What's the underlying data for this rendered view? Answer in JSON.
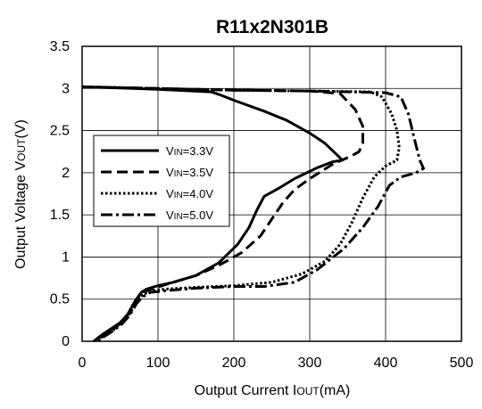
{
  "chart_data": {
    "type": "line",
    "title": "R11x2N301B",
    "xlabel": {
      "pre": "Output Current I",
      "sub": "OUT",
      "post": "(mA)"
    },
    "ylabel": {
      "pre": "Output Voltage V",
      "sub": "OUT",
      "post": "(V)"
    },
    "xlim": [
      0,
      500
    ],
    "ylim": [
      0,
      3.5
    ],
    "xticks": [
      "0",
      "100",
      "200",
      "300",
      "400",
      "500"
    ],
    "yticks": [
      "0",
      "0.5",
      "1",
      "1.5",
      "2",
      "2.5",
      "3",
      "3.5"
    ],
    "grid": true,
    "legend_position": "left-middle",
    "series": [
      {
        "name": {
          "pre": "V",
          "sub": "IN",
          "post": "=3.3V"
        },
        "style": "solid",
        "points": [
          [
            0,
            3.02
          ],
          [
            100,
            2.99
          ],
          [
            170,
            2.96
          ],
          [
            180,
            2.93
          ],
          [
            200,
            2.86
          ],
          [
            240,
            2.73
          ],
          [
            270,
            2.62
          ],
          [
            300,
            2.47
          ],
          [
            320,
            2.35
          ],
          [
            335,
            2.22
          ],
          [
            343,
            2.15
          ],
          [
            330,
            2.13
          ],
          [
            310,
            2.06
          ],
          [
            280,
            1.93
          ],
          [
            260,
            1.82
          ],
          [
            240,
            1.72
          ],
          [
            237,
            1.67
          ],
          [
            230,
            1.55
          ],
          [
            220,
            1.35
          ],
          [
            205,
            1.15
          ],
          [
            180,
            0.93
          ],
          [
            150,
            0.78
          ],
          [
            120,
            0.7
          ],
          [
            100,
            0.66
          ],
          [
            85,
            0.62
          ],
          [
            78,
            0.58
          ],
          [
            70,
            0.48
          ],
          [
            60,
            0.32
          ],
          [
            50,
            0.22
          ],
          [
            40,
            0.16
          ],
          [
            25,
            0.07
          ],
          [
            15,
            0.0
          ]
        ]
      },
      {
        "name": {
          "pre": "V",
          "sub": "IN",
          "post": "=3.5V"
        },
        "style": "dashed",
        "points": [
          [
            0,
            3.02
          ],
          [
            100,
            3.0
          ],
          [
            200,
            2.98
          ],
          [
            300,
            2.97
          ],
          [
            340,
            2.94
          ],
          [
            360,
            2.75
          ],
          [
            370,
            2.55
          ],
          [
            370,
            2.35
          ],
          [
            365,
            2.25
          ],
          [
            355,
            2.2
          ],
          [
            330,
            2.1
          ],
          [
            300,
            1.93
          ],
          [
            280,
            1.8
          ],
          [
            265,
            1.65
          ],
          [
            250,
            1.45
          ],
          [
            235,
            1.25
          ],
          [
            210,
            1.05
          ],
          [
            180,
            0.9
          ],
          [
            150,
            0.78
          ],
          [
            120,
            0.7
          ],
          [
            95,
            0.63
          ],
          [
            80,
            0.58
          ],
          [
            72,
            0.5
          ],
          [
            63,
            0.35
          ],
          [
            55,
            0.25
          ],
          [
            45,
            0.17
          ],
          [
            30,
            0.08
          ],
          [
            18,
            0.0
          ]
        ]
      },
      {
        "name": {
          "pre": "V",
          "sub": "IN",
          "post": "=4.0V"
        },
        "style": "dotted",
        "points": [
          [
            0,
            3.02
          ],
          [
            100,
            3.0
          ],
          [
            200,
            2.98
          ],
          [
            300,
            2.97
          ],
          [
            380,
            2.96
          ],
          [
            395,
            2.9
          ],
          [
            408,
            2.7
          ],
          [
            415,
            2.5
          ],
          [
            418,
            2.3
          ],
          [
            415,
            2.15
          ],
          [
            400,
            2.08
          ],
          [
            385,
            1.95
          ],
          [
            370,
            1.7
          ],
          [
            355,
            1.4
          ],
          [
            340,
            1.15
          ],
          [
            320,
            0.95
          ],
          [
            290,
            0.8
          ],
          [
            250,
            0.7
          ],
          [
            200,
            0.66
          ],
          [
            150,
            0.64
          ],
          [
            110,
            0.62
          ],
          [
            90,
            0.6
          ],
          [
            80,
            0.55
          ],
          [
            72,
            0.46
          ],
          [
            62,
            0.32
          ],
          [
            52,
            0.22
          ],
          [
            42,
            0.14
          ],
          [
            28,
            0.06
          ],
          [
            18,
            0.0
          ]
        ]
      },
      {
        "name": {
          "pre": "V",
          "sub": "IN",
          "post": "=5.0V"
        },
        "style": "dashdot",
        "points": [
          [
            0,
            3.02
          ],
          [
            100,
            3.0
          ],
          [
            200,
            2.98
          ],
          [
            300,
            2.97
          ],
          [
            400,
            2.95
          ],
          [
            420,
            2.9
          ],
          [
            430,
            2.7
          ],
          [
            438,
            2.4
          ],
          [
            445,
            2.15
          ],
          [
            450,
            2.05
          ],
          [
            440,
            2.0
          ],
          [
            420,
            1.95
          ],
          [
            405,
            1.85
          ],
          [
            390,
            1.6
          ],
          [
            370,
            1.35
          ],
          [
            345,
            1.1
          ],
          [
            310,
            0.85
          ],
          [
            280,
            0.7
          ],
          [
            240,
            0.65
          ],
          [
            200,
            0.65
          ],
          [
            150,
            0.63
          ],
          [
            110,
            0.6
          ],
          [
            90,
            0.58
          ],
          [
            80,
            0.53
          ],
          [
            72,
            0.45
          ],
          [
            62,
            0.3
          ],
          [
            52,
            0.2
          ],
          [
            40,
            0.12
          ],
          [
            28,
            0.05
          ],
          [
            20,
            0.0
          ]
        ]
      }
    ]
  }
}
